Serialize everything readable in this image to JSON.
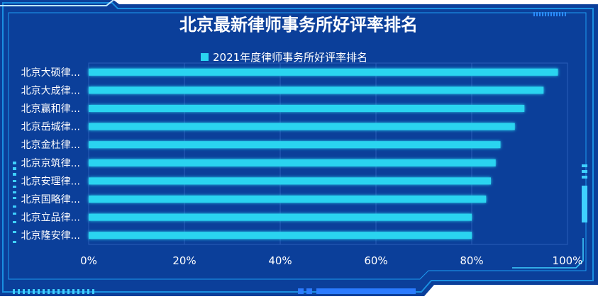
{
  "colors": {
    "panel": "#0b3f9a",
    "frame": "#1fb0ff",
    "bar": "#2ad4f0",
    "grid": "#2a5db8"
  },
  "chart_data": {
    "type": "bar",
    "orientation": "horizontal",
    "title": "北京最新律师事务所好评率排名",
    "legend_position": "top-center",
    "grid": true,
    "categories": [
      "北京大硕律...",
      "北京大成律...",
      "北京赢和律...",
      "北京岳城律...",
      "北京金杜律...",
      "北京京筑律...",
      "北京安理律...",
      "北京国略律...",
      "北京立品律...",
      "北京隆安律..."
    ],
    "series": [
      {
        "name": "2021年度律师事务所好评率排名",
        "values": [
          98,
          95,
          91,
          89,
          86,
          85,
          84,
          83,
          80,
          80
        ]
      }
    ],
    "xlim": [
      0,
      100
    ],
    "xticks": [
      "0%",
      "20%",
      "40%",
      "60%",
      "80%",
      "100%"
    ]
  }
}
